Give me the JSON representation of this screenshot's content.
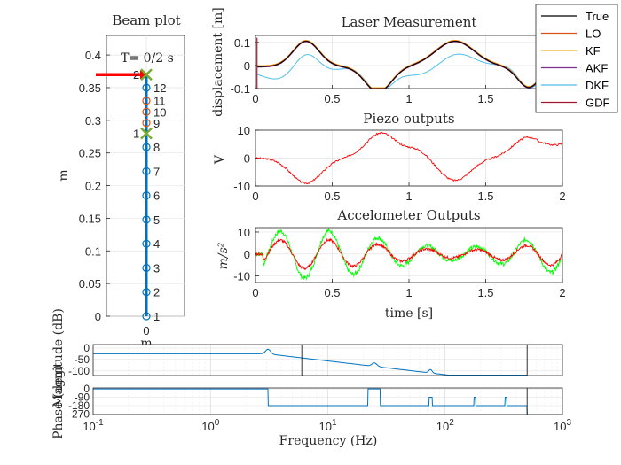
{
  "chart_data": [
    {
      "id": "beam",
      "type": "scatter",
      "title": "Beam plot",
      "annotation": "T= 0/2 s",
      "ylabel": "m",
      "xtick_labels": [
        "0"
      ],
      "xlabel": "m",
      "yticks": [
        0,
        0.05,
        0.1,
        0.15,
        0.2,
        0.25,
        0.3,
        0.35,
        0.4
      ],
      "ylim": [
        0,
        0.43
      ],
      "node_labels": [
        "1",
        "2",
        "3",
        "4",
        "5",
        "6",
        "7",
        "8",
        "9",
        "10",
        "11",
        "12"
      ],
      "node_heights": [
        0,
        0.037,
        0.074,
        0.111,
        0.148,
        0.185,
        0.222,
        0.259,
        0.296,
        0.313,
        0.33,
        0.35
      ],
      "marker_labels": [
        "1",
        "2"
      ],
      "marker_heights": [
        0.28,
        0.37
      ],
      "arrow_height": 0.37,
      "colors": {
        "beam": "#0072BD",
        "nodes": "#0072BD",
        "mid_nodes": "#D95319",
        "markers": "#77AC30",
        "arrow": "#FF0000"
      }
    },
    {
      "id": "laser",
      "type": "line",
      "title": "Laser Measurement",
      "ylabel": "displacement  [m]",
      "xlim": [
        0,
        2
      ],
      "ylim": [
        -0.1,
        0.13
      ],
      "xticks": [
        "0",
        "0.5",
        "1",
        "1.5",
        "2"
      ],
      "yticks": [
        "-0.1",
        "0",
        "0.1"
      ],
      "legend_position": "top-right",
      "series": [
        {
          "name": "True",
          "color": "#000000"
        },
        {
          "name": "LO",
          "color": "#D95319"
        },
        {
          "name": "KF",
          "color": "#EDB120"
        },
        {
          "name": "AKF",
          "color": "#7E2F8E"
        },
        {
          "name": "DKF",
          "color": "#4DBEEE"
        },
        {
          "name": "GDF",
          "color": "#A2142F"
        }
      ]
    },
    {
      "id": "piezo",
      "type": "line",
      "title": "Piezo outputs",
      "ylabel": "V",
      "xlim": [
        0,
        2
      ],
      "ylim": [
        -10,
        10
      ],
      "xticks": [
        "0",
        "0.5",
        "1",
        "1.5",
        "2"
      ],
      "yticks": [
        "-10",
        "0",
        "10"
      ],
      "color": "#FF0000"
    },
    {
      "id": "accel",
      "type": "line",
      "title": "Accelometer Outputs",
      "ylabel": "m/s²",
      "xlabel": "time [s]",
      "xlim": [
        0,
        2
      ],
      "ylim": [
        -13,
        12
      ],
      "xticks": [
        "0",
        "0.5",
        "1",
        "1.5",
        "2"
      ],
      "yticks": [
        "-10",
        "0",
        "10"
      ],
      "colors": [
        "#00FF00",
        "#FF0000"
      ]
    },
    {
      "id": "bode_mag",
      "type": "line",
      "ylabel": "Magnitude (dB)",
      "ylim": [
        -120,
        15
      ],
      "yticks": [
        "0",
        "-50",
        "-100"
      ],
      "x_scale": "log",
      "xlim": [
        0.1,
        1000
      ],
      "color": "#0072BD"
    },
    {
      "id": "bode_phase",
      "type": "line",
      "ylabel": "Phase (deg)",
      "ylim": [
        -275,
        10
      ],
      "yticks": [
        "0",
        "-90",
        "-180",
        "-270"
      ],
      "x_scale": "log",
      "xlim": [
        0.1,
        1000
      ],
      "xlabel": "Frequency (Hz)",
      "color": "#0072BD"
    }
  ],
  "freq_ticks": [
    {
      "base": "10",
      "exp": "-1"
    },
    {
      "base": "10",
      "exp": "0"
    },
    {
      "base": "10",
      "exp": "1"
    },
    {
      "base": "10",
      "exp": "2"
    },
    {
      "base": "10",
      "exp": "3"
    }
  ]
}
